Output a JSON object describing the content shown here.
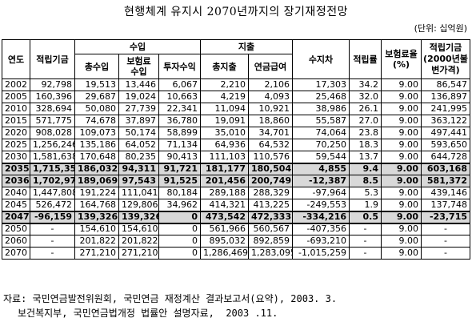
{
  "title": "현행체계 유지시 2070년까지의 장기재정전망",
  "unit": "(단위: 십억원)",
  "headers": {
    "year": "연도",
    "fund": "적립기금",
    "revenue": "수입",
    "total_revenue": "총수입",
    "premium_revenue": "보험료\n수입",
    "investment_return": "투자수익",
    "expenditure": "지출",
    "total_expenditure": "총지출",
    "pension_benefit": "연금급여",
    "balance": "수지차",
    "reserve_ratio": "적립률",
    "premium_rate": "보험료율\n(%)",
    "fund_2000": "적립기금\n(2000년불\n변가격)"
  },
  "rows": [
    {
      "year": "2002",
      "fund": "92,798",
      "rev": "19,513",
      "prem": "13,446",
      "inv": "6,067",
      "exp": "2,210",
      "ben": "2,106",
      "bal": "17,303",
      "ratio": "34.2",
      "rate": "9.00",
      "fund2000": "86,547",
      "hl": false
    },
    {
      "year": "2005",
      "fund": "160,396",
      "rev": "29,687",
      "prem": "19,024",
      "inv": "10,663",
      "exp": "4,219",
      "ben": "4,093",
      "bal": "25,468",
      "ratio": "32.0",
      "rate": "9.00",
      "fund2000": "136,897",
      "hl": false
    },
    {
      "year": "2010",
      "fund": "328,694",
      "rev": "50,080",
      "prem": "27,739",
      "inv": "22,341",
      "exp": "11,094",
      "ben": "10,921",
      "bal": "38,986",
      "ratio": "26.1",
      "rate": "9.00",
      "fund2000": "241,995",
      "hl": false
    },
    {
      "year": "2015",
      "fund": "571,775",
      "rev": "74,678",
      "prem": "37,897",
      "inv": "36,780",
      "exp": "19,091",
      "ben": "18,860",
      "bal": "55,587",
      "ratio": "27.0",
      "rate": "9.00",
      "fund2000": "363,122",
      "hl": false
    },
    {
      "year": "2020",
      "fund": "908,028",
      "rev": "109,073",
      "prem": "50,174",
      "inv": "58,899",
      "exp": "35,010",
      "ben": "34,701",
      "bal": "74,064",
      "ratio": "23.8",
      "rate": "9.00",
      "fund2000": "497,441",
      "hl": false
    },
    {
      "year": "2025",
      "fund": "1,256,246",
      "rev": "135,186",
      "prem": "64,052",
      "inv": "71,134",
      "exp": "64,936",
      "ben": "64,532",
      "bal": "70,250",
      "ratio": "18.3",
      "rate": "9.00",
      "fund2000": "593,650",
      "hl": false
    },
    {
      "year": "2030",
      "fund": "1,581,638",
      "rev": "170,648",
      "prem": "80,235",
      "inv": "90,413",
      "exp": "111,103",
      "ben": "110,576",
      "bal": "59,544",
      "ratio": "13.7",
      "rate": "9.00",
      "fund2000": "644,728",
      "hl": false
    },
    {
      "year": "2035",
      "fund": "1,715,359",
      "rev": "186,032",
      "prem": "94,311",
      "inv": "91,721",
      "exp": "181,177",
      "ben": "180,504",
      "bal": "4,855",
      "ratio": "9.4",
      "rate": "9.00",
      "fund2000": "603,168",
      "hl": true
    },
    {
      "year": "2036",
      "fund": "1,702,972",
      "rev": "189,069",
      "prem": "97,543",
      "inv": "91,525",
      "exp": "201,456",
      "ben": "200,749",
      "bal": "-12,387",
      "ratio": "8.5",
      "rate": "9.00",
      "fund2000": "581,372",
      "hl": true
    },
    {
      "year": "2040",
      "fund": "1,447,808",
      "rev": "191,224",
      "prem": "111,041",
      "inv": "80,184",
      "exp": "289,188",
      "ben": "288,329",
      "bal": "-97,964",
      "ratio": "5.3",
      "rate": "9.00",
      "fund2000": "439,146",
      "hl": false
    },
    {
      "year": "2045",
      "fund": "526,472",
      "rev": "164,768",
      "prem": "129,806",
      "inv": "34,962",
      "exp": "414,321",
      "ben": "413,225",
      "bal": "-249,553",
      "ratio": "1.9",
      "rate": "9.00",
      "fund2000": "137,748",
      "hl": false
    },
    {
      "year": "2047",
      "fund": "-96,159",
      "rev": "139,326",
      "prem": "139,326",
      "inv": "0",
      "exp": "473,542",
      "ben": "472,333",
      "bal": "-334,216",
      "ratio": "0.5",
      "rate": "9.00",
      "fund2000": "-23,715",
      "hl": true
    },
    {
      "year": "2050",
      "fund": "-",
      "rev": "154,610",
      "prem": "154,610",
      "inv": "0",
      "exp": "561,966",
      "ben": "560,567",
      "bal": "-407,356",
      "ratio": "-",
      "rate": "9.00",
      "fund2000": "-",
      "hl": false
    },
    {
      "year": "2060",
      "fund": "-",
      "rev": "201,822",
      "prem": "201,822",
      "inv": "0",
      "exp": "895,032",
      "ben": "892,859",
      "bal": "-693,210",
      "ratio": "-",
      "rate": "9.00",
      "fund2000": "-",
      "hl": false
    },
    {
      "year": "2070",
      "fund": "-",
      "rev": "271,210",
      "prem": "271,210",
      "inv": "0",
      "exp": "1,286,469",
      "ben": "1,283,095",
      "bal": "-1,015,259",
      "ratio": "-",
      "rate": "9.00",
      "fund2000": "-",
      "hl": false
    }
  ],
  "source_line1": "자료: 국민연금발전위원회, 국민연금 재정계산 결과보고서(요약), 2003. 3.",
  "source_line2": "보건복지부, 국민연금법개정 법률안 설명자료,  2003 .11."
}
